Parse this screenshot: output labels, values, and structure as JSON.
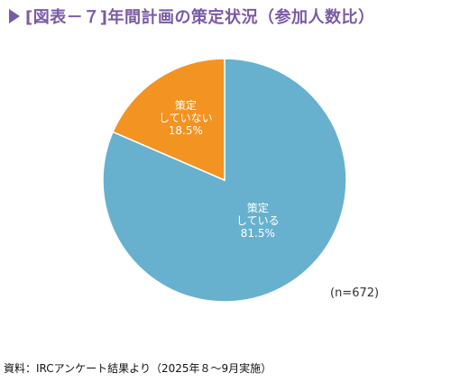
{
  "title": "[図表－７]年間計画の策定状況（参加人数比）",
  "colors": {
    "title": "#7a5aa6",
    "yes": "#67b1cf",
    "no": "#f39322"
  },
  "chart_data": {
    "type": "pie",
    "title": "[図表－７]年間計画の策定状況（参加人数比）",
    "slices": [
      {
        "name_line1": "策定",
        "name_line2": "している",
        "value": 81.5,
        "label": "81.5%",
        "color": "#67b1cf"
      },
      {
        "name_line1": "策定",
        "name_line2": "していない",
        "value": 18.5,
        "label": "18.5%",
        "color": "#f39322"
      }
    ],
    "n_label": "(n=672)"
  },
  "source": "資料：IRCアンケート結果より（2025年８～9月実施）"
}
